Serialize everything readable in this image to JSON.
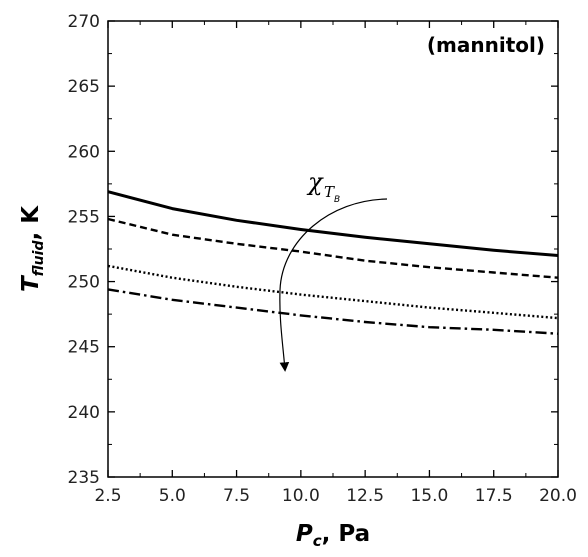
{
  "chart_data": {
    "type": "line",
    "annotation": "(mannitol)",
    "x_label": {
      "main": "P",
      "sub": "c",
      "suffix": ", Pa"
    },
    "y_label": {
      "main": "T",
      "sub": "fluid",
      "suffix": ", K"
    },
    "arrow_label": {
      "main": "χ",
      "sub": "T",
      "subsub": "B"
    },
    "xlim": [
      2.5,
      20.0
    ],
    "ylim": [
      235,
      270
    ],
    "x_ticks": [
      "2.5",
      "5.0",
      "7.5",
      "10.0",
      "12.5",
      "15.0",
      "17.5",
      "20.0"
    ],
    "y_ticks": [
      "235",
      "240",
      "245",
      "250",
      "255",
      "260",
      "265",
      "270"
    ],
    "x": [
      2.5,
      5.0,
      7.5,
      10.0,
      12.5,
      15.0,
      17.5,
      20.0
    ],
    "series": [
      {
        "style": "solid",
        "values": [
          256.9,
          255.6,
          254.7,
          254.0,
          253.4,
          252.9,
          252.4,
          252.0
        ]
      },
      {
        "style": "dashed",
        "values": [
          254.8,
          253.6,
          252.9,
          252.3,
          251.6,
          251.1,
          250.7,
          250.3
        ]
      },
      {
        "style": "dotted",
        "values": [
          251.2,
          250.3,
          249.6,
          249.0,
          248.5,
          248.0,
          247.6,
          247.2
        ]
      },
      {
        "style": "dash-dot",
        "values": [
          249.4,
          248.6,
          248.0,
          247.4,
          246.9,
          246.5,
          246.3,
          246.0
        ]
      }
    ],
    "grid": false,
    "legend": "none"
  }
}
